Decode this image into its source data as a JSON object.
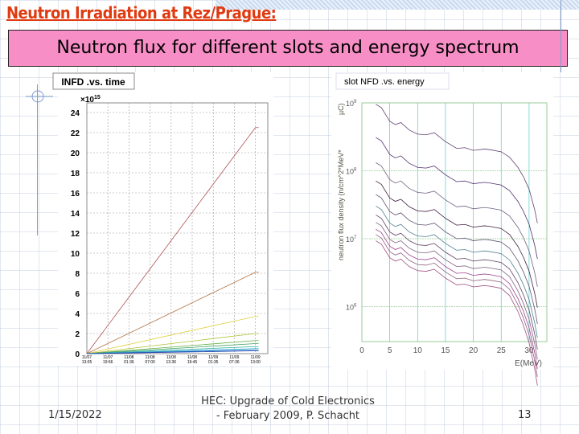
{
  "slide": {
    "title": "Neutron Irradiation at Rez/Prague:",
    "banner": "Neutron flux for different slots and energy spectrum",
    "footer_date": "1/15/2022",
    "footer_line1": "HEC: Upgrade of Cold Electronics",
    "footer_line2": "- February 2009,  P. Schacht",
    "page_number": "13"
  },
  "chart_data": [
    {
      "type": "line",
      "title": "INFD .vs. time",
      "ylabel": "",
      "y_multiplier": "×10",
      "y_exp": "15",
      "ylim": [
        0,
        25
      ],
      "yticks": [
        "0",
        "2",
        "4",
        "6",
        "8",
        "10",
        "12",
        "14",
        "16",
        "18",
        "20",
        "22",
        "24"
      ],
      "xticks": [
        [
          "11/07",
          "13:05"
        ],
        [
          "11/07",
          "19:56"
        ],
        [
          "11/08",
          "01:36"
        ],
        [
          "11/08",
          "07:00"
        ],
        [
          "11/08",
          "13:36"
        ],
        [
          "11/08",
          "19:45"
        ],
        [
          "11/09",
          "01:35"
        ],
        [
          "11/09",
          "07:36"
        ],
        [
          "11/09",
          "13:00"
        ]
      ],
      "series": [
        {
          "end": 22.5,
          "color": "#b05050"
        },
        {
          "end": 8.1,
          "color": "#b07040"
        },
        {
          "end": 3.7,
          "color": "#e0d040"
        },
        {
          "end": 2.0,
          "color": "#b0c030"
        },
        {
          "end": 1.3,
          "color": "#60b040"
        },
        {
          "end": 1.0,
          "color": "#40a060"
        },
        {
          "end": 0.7,
          "color": "#30b0a0"
        },
        {
          "end": 0.5,
          "color": "#30b0d0"
        },
        {
          "end": 0.38,
          "color": "#3080d0"
        },
        {
          "end": 0.28,
          "color": "#2040b0"
        }
      ]
    },
    {
      "type": "line",
      "title": "slot NFD .vs. energy",
      "ylabel": "neutron flux density (n/cm^2*MeV*",
      "unit": "µC)",
      "xlabel": "E(MeV)",
      "xlim": [
        0,
        33
      ],
      "xticks": [
        "0",
        "5",
        "10",
        "15",
        "20",
        "25",
        "30"
      ],
      "ylog": true,
      "yticks": [
        {
          "base": "10",
          "exp": "9"
        },
        {
          "base": "10",
          "exp": "8"
        },
        {
          "base": "10",
          "exp": "7"
        },
        {
          "base": "10",
          "exp": "6"
        }
      ],
      "shape_E": [
        2.5,
        3.5,
        5,
        6,
        7,
        8.5,
        10,
        11.5,
        13,
        15,
        17,
        18.5,
        20,
        22,
        23,
        25,
        26.5,
        28,
        29,
        30,
        31,
        31.5
      ],
      "shape_log": [
        0,
        -0.05,
        -0.25,
        -0.3,
        -0.27,
        -0.38,
        -0.44,
        -0.45,
        -0.42,
        -0.55,
        -0.65,
        -0.64,
        -0.68,
        -0.66,
        -0.67,
        -0.7,
        -0.78,
        -0.93,
        -1.07,
        -1.25,
        -1.55,
        -1.75
      ],
      "series_start_log": [
        8.98,
        8.49,
        8.12,
        7.85,
        7.65,
        7.48,
        7.35,
        7.24,
        7.14,
        7.06,
        6.97
      ],
      "colors": [
        "#604070",
        "#503070",
        "#706080",
        "#402040",
        "#605070",
        "#508090",
        "#604060",
        "#806080",
        "#a04090",
        "#906080",
        "#a05080"
      ]
    }
  ]
}
